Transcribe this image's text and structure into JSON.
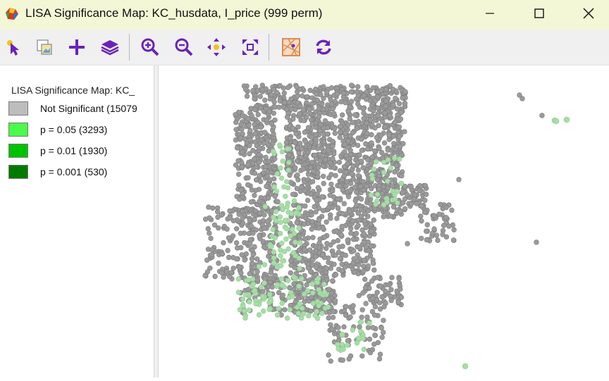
{
  "window": {
    "title": "LISA Significance Map: KC_husdata, I_price (999 perm)",
    "controls": [
      "minimize-icon",
      "maximize-icon",
      "close-icon"
    ]
  },
  "toolbar": {
    "tools": [
      {
        "name": "select-tool",
        "icon": "pointer-icon"
      },
      {
        "name": "copy-image-tool",
        "icon": "copy-image-icon"
      },
      {
        "name": "add-layer-tool",
        "icon": "plus-icon"
      },
      {
        "name": "layers-tool",
        "icon": "layers-icon"
      },
      {
        "name": "zoom-in-tool",
        "icon": "zoom-in-icon"
      },
      {
        "name": "zoom-out-tool",
        "icon": "zoom-out-icon"
      },
      {
        "name": "pan-tool",
        "icon": "pan-icon"
      },
      {
        "name": "fit-extent-tool",
        "icon": "fit-extent-icon"
      },
      {
        "name": "basemap-tool",
        "icon": "basemap-icon"
      },
      {
        "name": "refresh-tool",
        "icon": "refresh-icon"
      }
    ]
  },
  "legend": {
    "title": "LISA Significance Map: KC_",
    "items": [
      {
        "label": "Not Significant (15079",
        "color": "#bdbdbd"
      },
      {
        "label": "p = 0.05 (3293)",
        "color": "#4cfa4c"
      },
      {
        "label": "p = 0.01 (1930)",
        "color": "#00c300"
      },
      {
        "label": "p = 0.001 (530)",
        "color": "#007a00"
      }
    ]
  },
  "colors": {
    "title_bar": "#f4f7d6",
    "toolbar_icon": "#7a2bc4",
    "point_not_significant": "#9a9a9a",
    "point_significant": "#a8dca8"
  }
}
